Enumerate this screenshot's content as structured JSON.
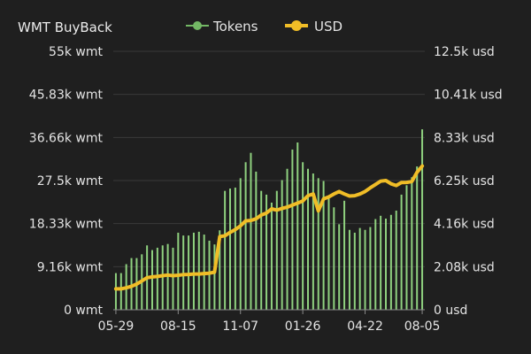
{
  "chart_data": {
    "type": "bar+line",
    "title": "WMT BuyBack",
    "legend": {
      "position": "top-center",
      "items": [
        {
          "name": "Tokens",
          "color": "#73b865",
          "marker": "line-dot"
        },
        {
          "name": "USD",
          "color": "#f0bd27",
          "marker": "line-dot"
        }
      ]
    },
    "y_left": {
      "ticks": [
        "0 wmt",
        "9.16k wmt",
        "18.33k wmt",
        "27.5k wmt",
        "36.66k wmt",
        "45.83k wmt",
        "55k wmt"
      ],
      "ylim": [
        0,
        55000
      ]
    },
    "y_right": {
      "ticks": [
        "0 usd",
        "2.08k usd",
        "4.16k usd",
        "6.25k usd",
        "8.33k usd",
        "10.41k usd",
        "12.5k usd"
      ],
      "ylim": [
        0,
        12500
      ]
    },
    "x_ticks": [
      "05-29",
      "08-15",
      "11-07",
      "01-26",
      "04-22",
      "08-05"
    ],
    "grid": true,
    "series": [
      {
        "name": "Tokens",
        "type": "bar",
        "axis": "left",
        "color": "#8fd17f",
        "values": [
          7800,
          7800,
          9700,
          11000,
          11000,
          11800,
          13700,
          12700,
          13200,
          13700,
          14000,
          13200,
          16400,
          15800,
          15800,
          16400,
          16600,
          16000,
          14700,
          13900,
          16900,
          25300,
          25800,
          26000,
          28000,
          31400,
          33400,
          29400,
          25300,
          24500,
          22800,
          25300,
          27600,
          30000,
          34100,
          35600,
          31400,
          30000,
          29000,
          28000,
          27400,
          24300,
          21800,
          18200,
          23200,
          17000,
          16400,
          17400,
          17000,
          17600,
          19300,
          20000,
          19400,
          20200,
          21100,
          24500,
          26500,
          28200,
          30500,
          38400
        ]
      },
      {
        "name": "USD",
        "type": "line",
        "axis": "right",
        "color": "#f0bd27",
        "values": [
          1010,
          1010,
          1060,
          1130,
          1240,
          1390,
          1550,
          1590,
          1610,
          1650,
          1680,
          1650,
          1670,
          1700,
          1710,
          1730,
          1730,
          1750,
          1770,
          1820,
          3540,
          3580,
          3740,
          3880,
          4060,
          4300,
          4320,
          4400,
          4580,
          4680,
          4880,
          4820,
          4900,
          4960,
          5060,
          5160,
          5260,
          5520,
          5600,
          4780,
          5360,
          5460,
          5600,
          5720,
          5600,
          5500,
          5520,
          5600,
          5720,
          5900,
          6060,
          6220,
          6250,
          6090,
          6010,
          6150,
          6160,
          6200,
          6650,
          6950
        ]
      }
    ]
  }
}
